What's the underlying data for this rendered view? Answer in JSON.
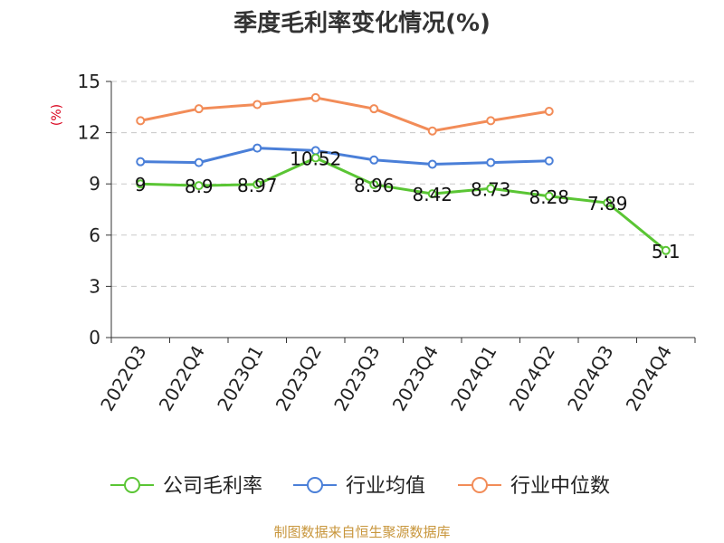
{
  "chart_data": {
    "type": "line",
    "title": "季度毛利率变化情况(%)",
    "ylabel": "(%)",
    "xlabel": "",
    "ylim": [
      0,
      15
    ],
    "yticks": [
      0,
      3,
      6,
      9,
      12,
      15
    ],
    "grid": true,
    "legend_position": "bottom",
    "categories": [
      "2022Q3",
      "2022Q4",
      "2023Q1",
      "2023Q2",
      "2023Q3",
      "2023Q4",
      "2024Q1",
      "2024Q2",
      "2024Q3",
      "2024Q4"
    ],
    "series": [
      {
        "name": "公司毛利率",
        "color": "#5ac534",
        "values": [
          9,
          8.9,
          8.97,
          10.52,
          8.96,
          8.42,
          8.73,
          8.28,
          7.89,
          5.1
        ],
        "data_labels": [
          "9",
          "8.9",
          "8.97",
          "10.52",
          "8.96",
          "8.42",
          "8.73",
          "8.28",
          "7.89",
          "5.1"
        ]
      },
      {
        "name": "行业均值",
        "color": "#4a7fd8",
        "values": [
          10.3,
          10.25,
          11.1,
          10.95,
          10.4,
          10.15,
          10.25,
          10.35,
          null,
          null
        ]
      },
      {
        "name": "行业中位数",
        "color": "#f28c58",
        "values": [
          12.7,
          13.4,
          13.65,
          14.05,
          13.4,
          12.1,
          12.7,
          13.25,
          null,
          null
        ]
      }
    ],
    "source": "制图数据来自恒生聚源数据库"
  }
}
